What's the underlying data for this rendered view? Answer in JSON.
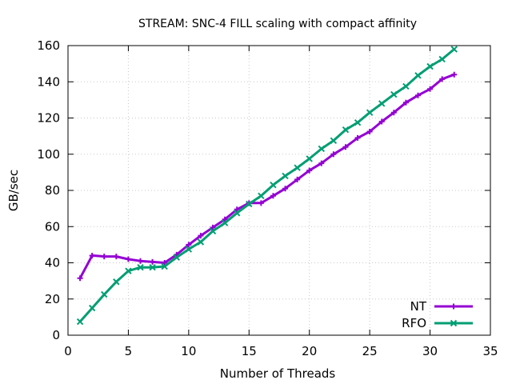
{
  "chart_data": {
    "type": "line",
    "title": "STREAM: SNC-4 FILL scaling with compact affinity",
    "xlabel": "Number of Threads",
    "ylabel": "GB/sec",
    "xlim": [
      0,
      35
    ],
    "ylim": [
      0,
      160
    ],
    "xticks": [
      0,
      5,
      10,
      15,
      20,
      25,
      30,
      35
    ],
    "yticks": [
      0,
      20,
      40,
      60,
      80,
      100,
      120,
      140,
      160
    ],
    "grid": true,
    "legend_position": "bottom-right",
    "series": [
      {
        "name": "NT",
        "color": "#9400d3",
        "marker": "plus",
        "x": [
          1,
          2,
          3,
          4,
          5,
          6,
          7,
          8,
          9,
          10,
          11,
          12,
          13,
          14,
          15,
          16,
          17,
          18,
          19,
          20,
          21,
          22,
          23,
          24,
          25,
          26,
          27,
          28,
          29,
          30,
          31,
          32
        ],
        "values": [
          31.5,
          44,
          43.5,
          43.5,
          42,
          41,
          40.5,
          40,
          44.5,
          50,
          55,
          59.5,
          64,
          69.5,
          73,
          73,
          77,
          81,
          86,
          91,
          95,
          100,
          104,
          109,
          112.5,
          118,
          123,
          128.5,
          132.5,
          136,
          141.5,
          144
        ]
      },
      {
        "name": "RFO",
        "color": "#009e73",
        "marker": "cross",
        "x": [
          1,
          2,
          3,
          4,
          5,
          6,
          7,
          8,
          9,
          10,
          11,
          12,
          13,
          14,
          15,
          16,
          17,
          18,
          19,
          20,
          21,
          22,
          23,
          24,
          25,
          26,
          27,
          28,
          29,
          30,
          31,
          32
        ],
        "values": [
          7.5,
          15,
          22.5,
          29.5,
          35.5,
          37.5,
          37.5,
          38,
          43,
          47.5,
          51.5,
          57.5,
          62,
          67.5,
          72.5,
          77,
          83,
          88,
          92.5,
          97.5,
          103,
          107.5,
          113.5,
          117.5,
          123,
          128,
          133,
          137.5,
          143.5,
          148.5,
          152.5,
          158
        ]
      }
    ]
  }
}
